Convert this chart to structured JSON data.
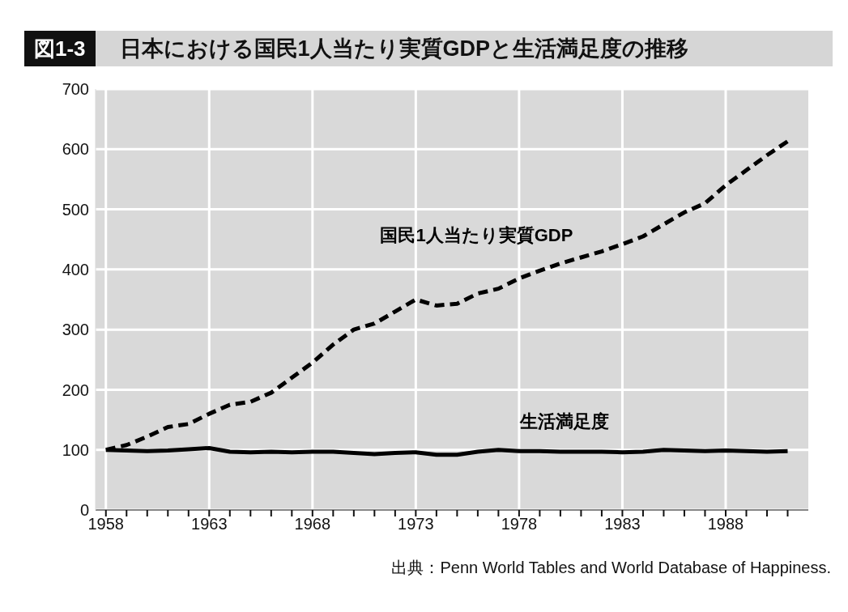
{
  "chart_data": {
    "type": "line",
    "subtitle": "図1-3",
    "title": "日本における国民1人当たり実質GDPと生活満足度の推移",
    "x": [
      1958,
      1959,
      1960,
      1961,
      1962,
      1963,
      1964,
      1965,
      1966,
      1967,
      1968,
      1969,
      1970,
      1971,
      1972,
      1973,
      1974,
      1975,
      1976,
      1977,
      1978,
      1979,
      1980,
      1981,
      1982,
      1983,
      1984,
      1985,
      1986,
      1987,
      1988,
      1989,
      1990,
      1991
    ],
    "series": [
      {
        "name": "国民1人当たり実質GDP",
        "color": "#000000",
        "line_style": "dashed",
        "values": [
          100,
          108,
          122,
          138,
          143,
          160,
          175,
          180,
          195,
          220,
          245,
          275,
          300,
          310,
          330,
          350,
          340,
          343,
          360,
          368,
          385,
          398,
          410,
          420,
          430,
          442,
          455,
          475,
          495,
          510,
          540,
          565,
          590,
          613
        ]
      },
      {
        "name": "生活満足度",
        "color": "#000000",
        "line_style": "solid",
        "values": [
          100,
          99,
          98,
          99,
          101,
          103,
          97,
          96,
          97,
          96,
          97,
          97,
          95,
          93,
          95,
          96,
          92,
          92,
          97,
          100,
          98,
          98,
          97,
          97,
          97,
          96,
          97,
          100,
          99,
          98,
          99,
          98,
          97,
          98
        ]
      }
    ],
    "xlim": [
      1957.5,
      1992
    ],
    "xticks": [
      1958,
      {
        "value": 1959,
        "label": null
      },
      {
        "value": 1960,
        "label": null
      },
      {
        "value": 1961,
        "label": null
      },
      {
        "value": 1962,
        "label": null
      },
      1963,
      {
        "value": 1964,
        "label": null
      },
      {
        "value": 1965,
        "label": null
      },
      {
        "value": 1966,
        "label": null
      },
      {
        "value": 1967,
        "label": null
      },
      1968,
      {
        "value": 1969,
        "label": null
      },
      {
        "value": 1970,
        "label": null
      },
      {
        "value": 1971,
        "label": null
      },
      {
        "value": 1972,
        "label": null
      },
      1973,
      {
        "value": 1974,
        "label": null
      },
      {
        "value": 1975,
        "label": null
      },
      {
        "value": 1976,
        "label": null
      },
      {
        "value": 1977,
        "label": null
      },
      1978,
      {
        "value": 1979,
        "label": null
      },
      {
        "value": 1980,
        "label": null
      },
      {
        "value": 1981,
        "label": null
      },
      {
        "value": 1982,
        "label": null
      },
      1983,
      {
        "value": 1984,
        "label": null
      },
      {
        "value": 1985,
        "label": null
      },
      {
        "value": 1986,
        "label": null
      },
      {
        "value": 1987,
        "label": null
      },
      1988,
      {
        "value": 1989,
        "label": null
      },
      {
        "value": 1990,
        "label": null
      },
      {
        "value": 1991,
        "label": null
      }
    ],
    "ylim": [
      0,
      700
    ],
    "yticks": [
      0,
      100,
      200,
      300,
      400,
      500,
      600,
      700
    ],
    "grid": true,
    "legend": false,
    "marker": "none",
    "annotations": [
      "出典：Penn World Tables and World Database of Happiness."
    ]
  }
}
